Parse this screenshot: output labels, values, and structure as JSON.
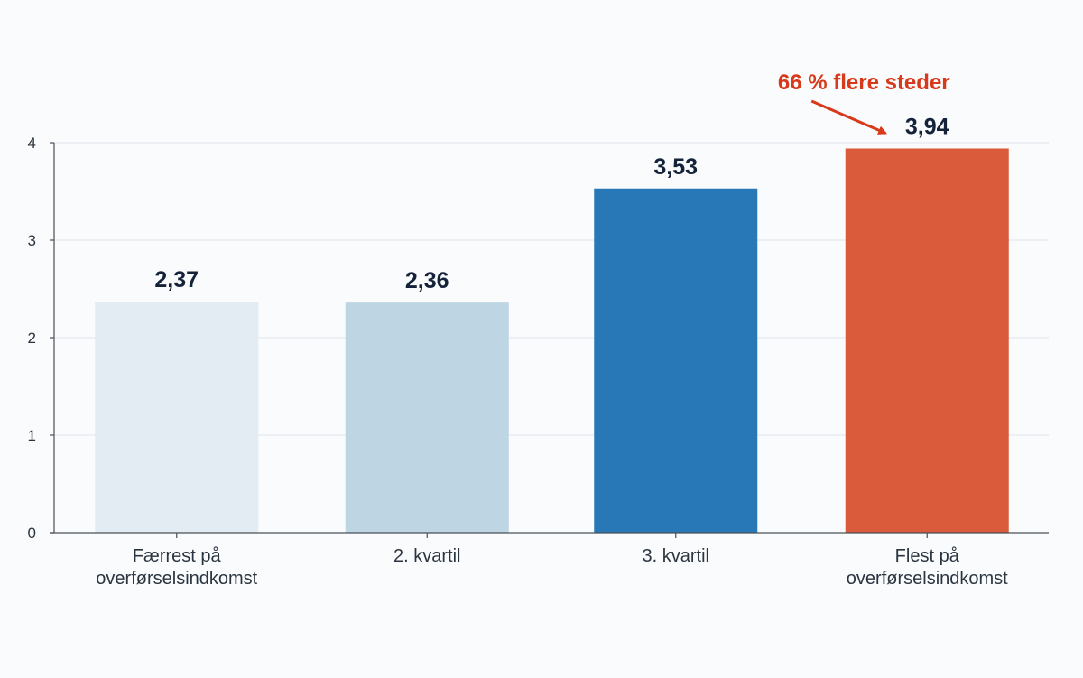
{
  "chart_data": {
    "type": "bar",
    "title": "",
    "xlabel": "",
    "ylabel": "",
    "ylim": [
      0,
      4
    ],
    "yticks": [
      0,
      1,
      2,
      3,
      4
    ],
    "grid": true,
    "legend": "none",
    "categories": [
      [
        "Færrest på",
        "overførselsindkomst"
      ],
      [
        "2. kvartil"
      ],
      [
        "3. kvartil"
      ],
      [
        "Flest på",
        "overførselsindkomst"
      ]
    ],
    "values": [
      2.37,
      2.36,
      3.53,
      3.94
    ],
    "value_labels": [
      "2,37",
      "2,36",
      "3,53",
      "3,94"
    ],
    "colors": [
      "#e3ecf3",
      "#bed5e4",
      "#2878b8",
      "#da5b3b"
    ],
    "annotation": {
      "text": "66 % flere steder",
      "color": "#d8391a",
      "target_category_index": 3
    }
  }
}
